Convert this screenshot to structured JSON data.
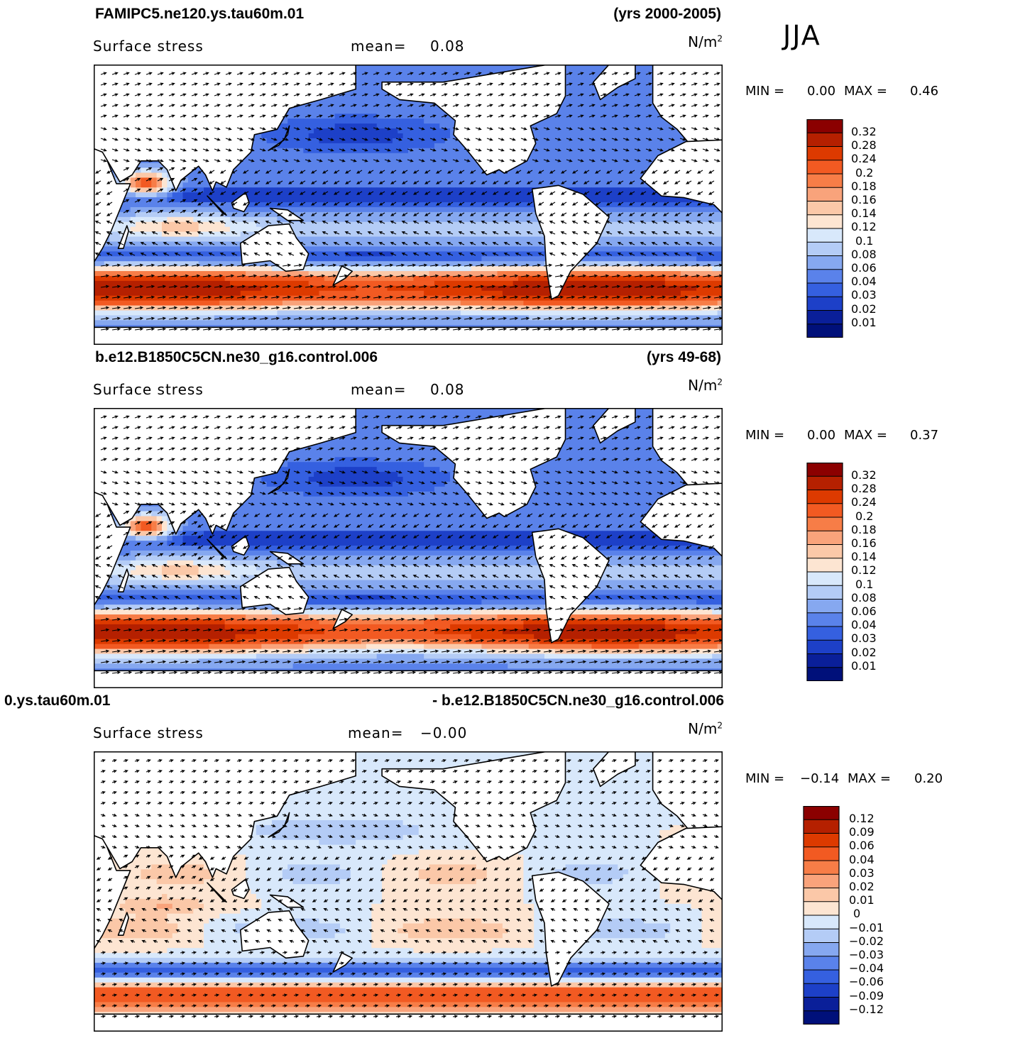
{
  "season": "JJA",
  "panels": [
    {
      "run_name": "FAMIPC5.ne120.ys.tau60m.01",
      "years": "(yrs 2000-2005)",
      "variable": "Surface stress",
      "mean_label": "mean=",
      "mean_value": "0.08",
      "units": "N/m",
      "units_exp": "2",
      "min_label": "MIN =",
      "min_value": "0.00",
      "max_label": "MAX =",
      "max_value": "0.46",
      "palette": "abs",
      "levels": [
        "0.32",
        "0.28",
        "0.24",
        "0.2",
        "0.18",
        "0.16",
        "0.14",
        "0.12",
        "0.1",
        "0.08",
        "0.06",
        "0.04",
        "0.03",
        "0.02",
        "0.01"
      ]
    },
    {
      "run_name": "b.e12.B1850C5CN.ne30_g16.control.006",
      "years": "(yrs 49-68)",
      "variable": "Surface stress",
      "mean_label": "mean=",
      "mean_value": "0.08",
      "units": "N/m",
      "units_exp": "2",
      "min_label": "MIN =",
      "min_value": "0.00",
      "max_label": "MAX =",
      "max_value": "0.37",
      "palette": "abs",
      "levels": [
        "0.32",
        "0.28",
        "0.24",
        "0.2",
        "0.18",
        "0.16",
        "0.14",
        "0.12",
        "0.1",
        "0.08",
        "0.06",
        "0.04",
        "0.03",
        "0.02",
        "0.01"
      ]
    },
    {
      "run_name": "0.ys.tau60m.01",
      "years": "- b.e12.B1850C5CN.ne30_g16.control.006",
      "variable": "Surface stress",
      "mean_label": "mean=",
      "mean_value": "−0.00",
      "units": "N/m",
      "units_exp": "2",
      "min_label": "MIN =",
      "min_value": "−0.14",
      "max_label": "MAX =",
      "max_value": "0.20",
      "palette": "diff",
      "levels": [
        "0.12",
        "0.09",
        "0.06",
        "0.04",
        "0.03",
        "0.02",
        "0.01",
        "0",
        "−0.01",
        "−0.02",
        "−0.03",
        "−0.04",
        "−0.06",
        "−0.09",
        "−0.12"
      ]
    }
  ],
  "colors": {
    "abs": [
      "#8b0000",
      "#b52000",
      "#dd3a00",
      "#f25a22",
      "#f77d47",
      "#f9a37b",
      "#fbc8a8",
      "#fde5d2",
      "#d8e8fb",
      "#b4ccf6",
      "#86a8f0",
      "#5a82ea",
      "#3560e0",
      "#1d40c8",
      "#0a1f99",
      "#00107a"
    ],
    "diff": [
      "#8b0000",
      "#b52000",
      "#dd3a00",
      "#f25a22",
      "#f77d47",
      "#f9a37b",
      "#fbc8a8",
      "#fde5d2",
      "#d8e8fb",
      "#b4ccf6",
      "#86a8f0",
      "#5a82ea",
      "#3560e0",
      "#1d40c8",
      "#0a1f99",
      "#00107a"
    ]
  }
}
